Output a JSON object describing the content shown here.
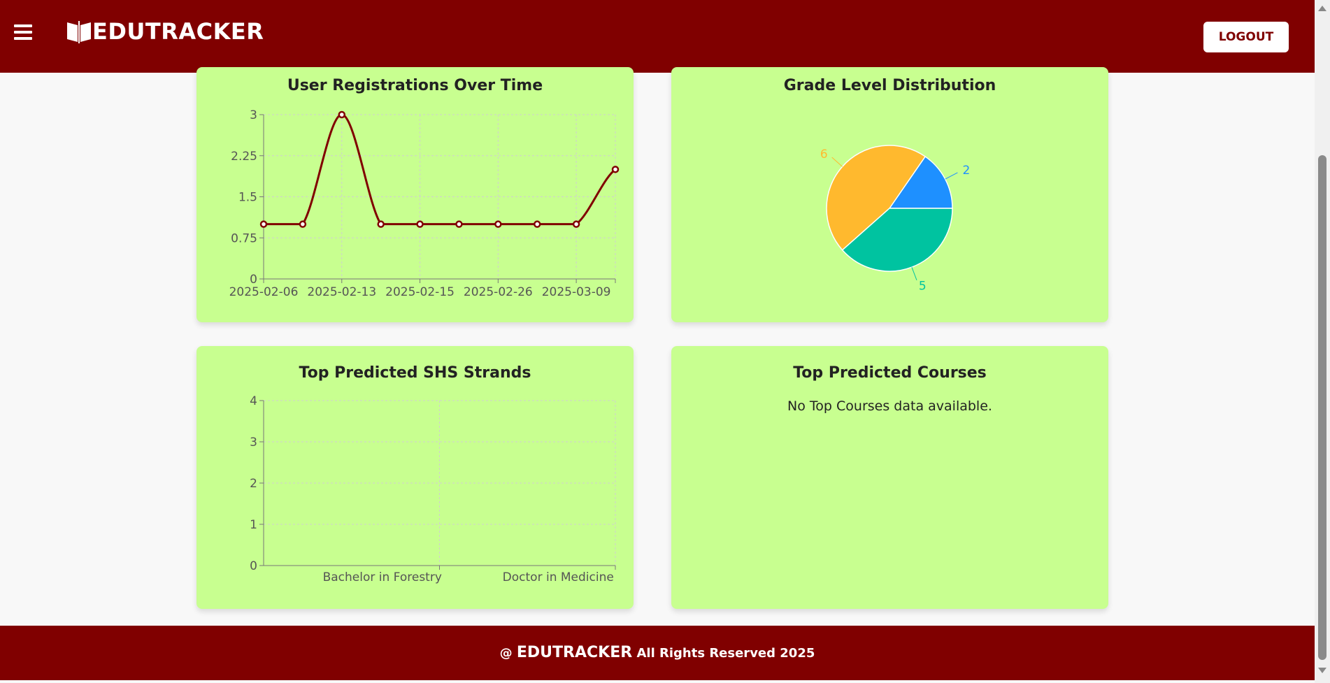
{
  "header": {
    "brand": "EDUTRACKER",
    "logout_label": "LOGOUT",
    "accent_color": "#800000"
  },
  "cards": {
    "registrations": {
      "title": "User Registrations Over Time"
    },
    "grade_distribution": {
      "title": "Grade Level Distribution"
    },
    "shs_strands": {
      "title": "Top Predicted SHS Strands"
    },
    "courses": {
      "title": "Top Predicted Courses",
      "empty_message": "No Top Courses data available."
    }
  },
  "footer": {
    "prefix": "@",
    "brand": "EDUTRACKER",
    "suffix": "All Rights Reserved 2025"
  },
  "chart_data": [
    {
      "type": "line",
      "title": "User Registrations Over Time",
      "x": [
        "2025-02-06",
        "",
        "2025-02-13",
        "",
        "2025-02-15",
        "",
        "2025-02-26",
        "",
        "2025-03-09",
        ""
      ],
      "xtick_labels": [
        "2025-02-06",
        "2025-02-13",
        "2025-02-15",
        "2025-02-26",
        "2025-03-09"
      ],
      "values": [
        1,
        1,
        3,
        1,
        1,
        1,
        1,
        1,
        1,
        2
      ],
      "yticks": [
        0,
        0.75,
        1.5,
        2.25,
        3
      ],
      "ylim": [
        0,
        3
      ],
      "grid": true,
      "line_color": "#800000"
    },
    {
      "type": "pie",
      "title": "Grade Level Distribution",
      "values": [
        2,
        6,
        5
      ],
      "colors": [
        "#1e90ff",
        "#ffb92e",
        "#00c3a0"
      ],
      "data_labels": [
        "2",
        "6",
        "5"
      ]
    },
    {
      "type": "bar",
      "title": "Top Predicted SHS Strands",
      "categories": [
        "Bachelor in Forestry",
        "Doctor in Medicine"
      ],
      "values": [
        0,
        0
      ],
      "yticks": [
        0,
        1,
        2,
        3,
        4
      ],
      "ylim": [
        0,
        4
      ],
      "grid": true
    }
  ]
}
